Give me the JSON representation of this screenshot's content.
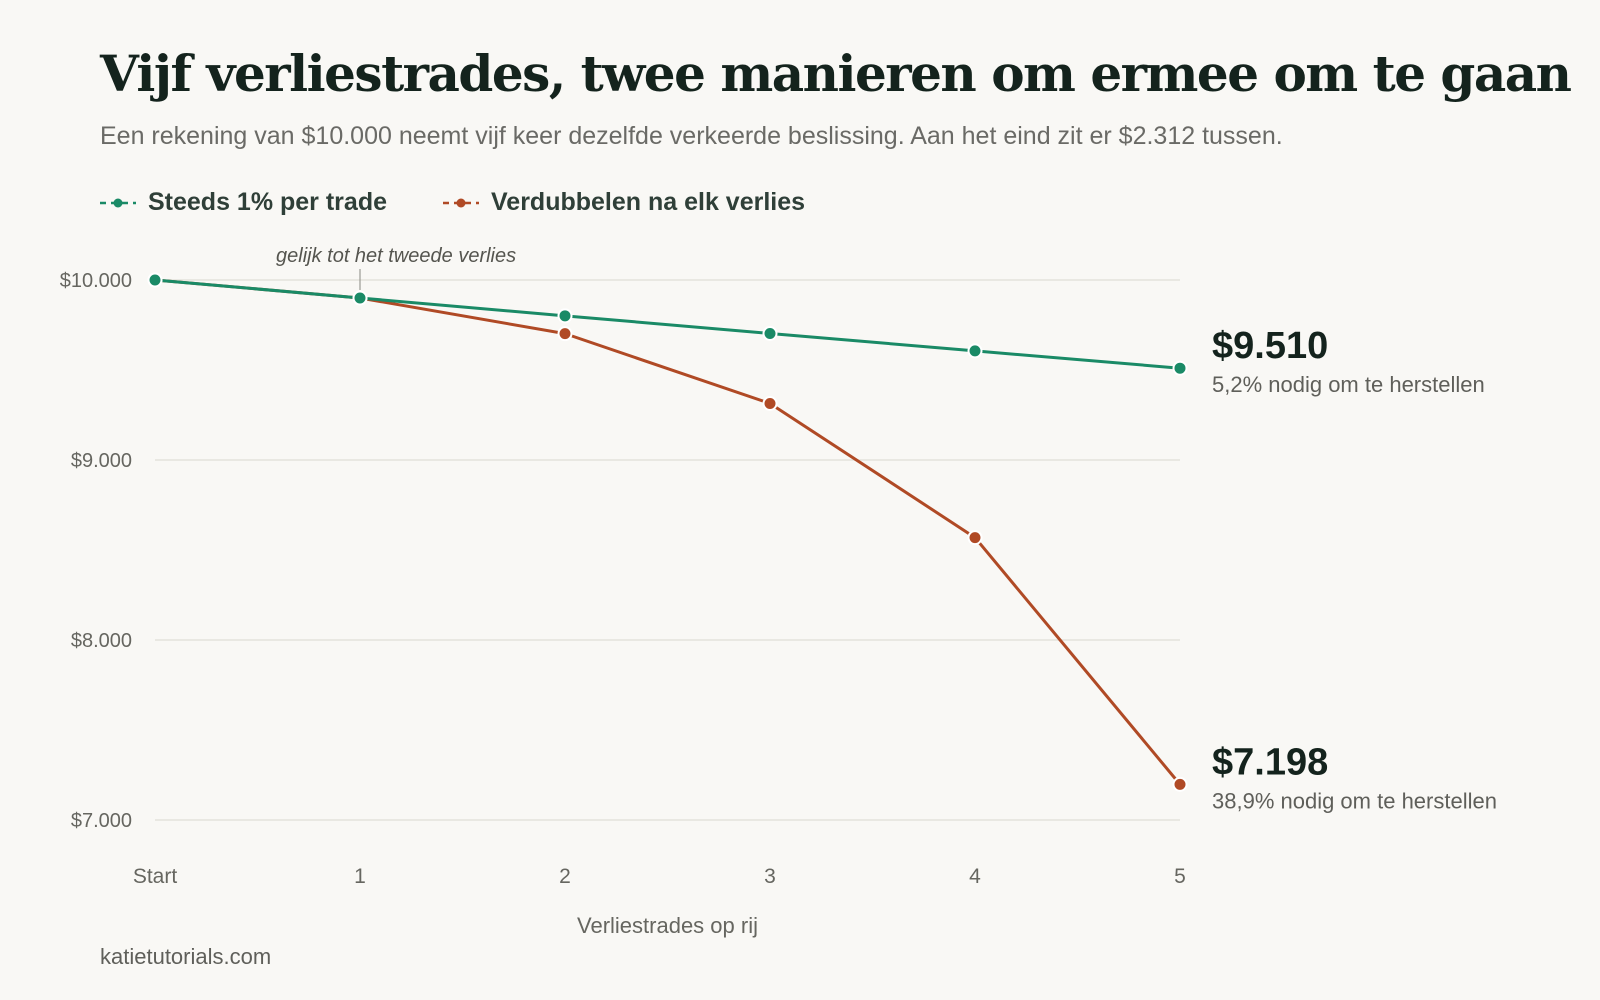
{
  "header": {
    "title": "Vijf verliestrades, twee manieren om ermee om te gaan",
    "subtitle": "Een rekening van $10.000 neemt vijf keer dezelfde verkeerde beslissing. Aan het eind zit er $2.312 tussen."
  },
  "footer": {
    "source": "katietutorials.com"
  },
  "colors": {
    "green": "#1a8a66",
    "rust": "#b04a25",
    "grid": "#e4e2dc",
    "tick": "#666660"
  },
  "chart_data": {
    "type": "line",
    "xlabel": "Verliestrades op rij",
    "categories": [
      "Start",
      "1",
      "2",
      "3",
      "4",
      "5"
    ],
    "ylim": [
      7000,
      10000
    ],
    "yticks": [
      {
        "value": 10000,
        "label": "$10.000"
      },
      {
        "value": 9000,
        "label": "$9.000"
      },
      {
        "value": 8000,
        "label": "$8.000"
      },
      {
        "value": 7000,
        "label": "$7.000"
      }
    ],
    "grid": true,
    "legend_position": "top-left",
    "series": [
      {
        "name": "Steeds 1% per trade",
        "color": "#1a8a66",
        "values": [
          10000,
          9900,
          9801,
          9703,
          9606,
          9510
        ],
        "end_label": "$9.510",
        "end_note": "5,2% nodig om te herstellen"
      },
      {
        "name": "Verdubbelen na elk verlies",
        "color": "#b04a25",
        "values": [
          10000,
          9900,
          9702,
          9314,
          8569,
          7198
        ],
        "end_label": "$7.198",
        "end_note": "38,9% nodig om te herstellen"
      }
    ],
    "annotation": {
      "text": "gelijk tot het tweede verlies",
      "at_category": 1
    }
  }
}
